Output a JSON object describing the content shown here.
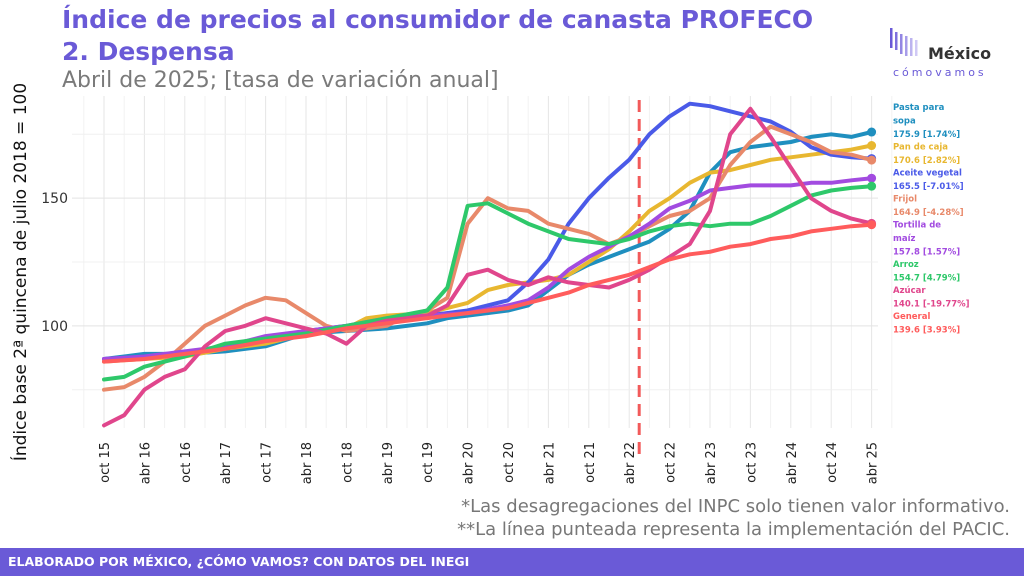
{
  "header": {
    "title_line1": "Índice de precios al consumidor de canasta PROFECO",
    "title_line2": "2. Despensa",
    "subtitle": "Abril de 2025; [tasa de variación anual]"
  },
  "logo": {
    "line1": "México",
    "line2": "cómovamos"
  },
  "notes": {
    "line1": "*Las desagregaciones del INPC solo tienen valor informativo.",
    "line2": "**La línea punteada representa la implementación del PACIC."
  },
  "footer": {
    "text": "ELABORADO POR MÉXICO, ¿CÓMO VAMOS? CON DATOS DEL INEGI"
  },
  "chart_data": {
    "type": "line",
    "ylabel": "Índice base 2ª quincena de julio 2018 = 100",
    "ylim": [
      60,
      190
    ],
    "yticks": [
      100,
      150
    ],
    "x_ticks": [
      "oct 15",
      "abr 16",
      "oct 16",
      "abr 17",
      "oct 17",
      "abr 18",
      "oct 18",
      "abr 19",
      "oct 19",
      "abr 20",
      "oct 20",
      "abr 21",
      "oct 21",
      "abr 22",
      "oct 22",
      "abr 23",
      "oct 23",
      "abr 24",
      "oct 24",
      "abr 25"
    ],
    "vline_at": "abr 22",
    "grid": true,
    "series": [
      {
        "name": "Pasta para sopa",
        "label": "175.9 [1.74%]",
        "color": "#1f8fbf",
        "x": [
          0,
          0.5,
          1,
          2,
          3,
          4,
          5,
          6,
          7,
          8,
          8.5,
          9,
          10,
          10.5,
          11,
          11.5,
          12,
          12.5,
          13,
          13.5,
          14,
          14.5,
          15,
          15.5,
          16,
          16.5,
          17,
          17.5,
          18,
          18.5,
          19
        ],
        "y": [
          87,
          88,
          89,
          89,
          90,
          92,
          97,
          98,
          99,
          101,
          103,
          104,
          106,
          108,
          114,
          120,
          124,
          127,
          130,
          133,
          138,
          145,
          160,
          168,
          170,
          171,
          172,
          174,
          175,
          174,
          175.9
        ]
      },
      {
        "name": "Pan de caja",
        "label": "170.6 [2.82%]",
        "color": "#e8b730",
        "x": [
          0,
          1,
          2,
          3,
          4,
          5,
          6,
          6.5,
          7,
          8,
          9,
          9.5,
          10,
          10.5,
          11,
          11.5,
          12,
          12.5,
          13,
          13.5,
          14,
          14.5,
          15,
          15.5,
          16,
          16.5,
          17,
          17.5,
          18,
          18.5,
          19
        ],
        "y": [
          86,
          87,
          88,
          91,
          93,
          97,
          99,
          103,
          104,
          105,
          109,
          114,
          116,
          117,
          118,
          120,
          125,
          130,
          137,
          145,
          150,
          156,
          160,
          161,
          163,
          165,
          166,
          167,
          168,
          169,
          170.6
        ]
      },
      {
        "name": "Aceite vegetal",
        "label": "165.5 [-7.01%]",
        "color": "#4a5ae8",
        "x": [
          0,
          1,
          2,
          3,
          4,
          5,
          6,
          7,
          8,
          9,
          10,
          10.5,
          11,
          11.5,
          12,
          12.5,
          13,
          13.5,
          14,
          14.5,
          15,
          15.5,
          16,
          16.5,
          17,
          17.5,
          18,
          18.5,
          19
        ],
        "y": [
          87,
          88,
          89,
          92,
          95,
          98,
          100,
          102,
          104,
          106,
          110,
          117,
          126,
          140,
          150,
          158,
          165,
          175,
          182,
          187,
          186,
          184,
          182,
          180,
          176,
          170,
          167,
          166,
          165.5
        ]
      },
      {
        "name": "Frijol",
        "label": "164.9 [-4.28%]",
        "color": "#e8896a",
        "x": [
          0,
          0.5,
          1,
          1.5,
          2,
          2.5,
          3,
          3.5,
          4,
          4.5,
          5,
          5.5,
          6,
          6.5,
          7,
          7.5,
          8,
          8.5,
          9,
          9.5,
          10,
          10.5,
          11,
          11.5,
          12,
          12.5,
          13,
          13.5,
          14,
          14.5,
          15,
          15.5,
          16,
          16.5,
          17,
          17.5,
          18,
          18.5,
          19
        ],
        "y": [
          75,
          76,
          80,
          86,
          93,
          100,
          104,
          108,
          111,
          110,
          105,
          100,
          98,
          99,
          100,
          104,
          106,
          111,
          140,
          150,
          146,
          145,
          140,
          138,
          136,
          132,
          135,
          139,
          143,
          145,
          150,
          163,
          172,
          178,
          175,
          172,
          168,
          167,
          164.9
        ]
      },
      {
        "name": "Tortilla de maíz",
        "label": "157.8 [1.57%]",
        "color": "#a24be0",
        "x": [
          0,
          1,
          2,
          3,
          4,
          5,
          6,
          7,
          8,
          9,
          10,
          10.5,
          11,
          11.5,
          12,
          12.5,
          13,
          13.5,
          14,
          14.5,
          15,
          15.5,
          16,
          16.5,
          17,
          17.5,
          18,
          18.5,
          19
        ],
        "y": [
          87,
          88,
          90,
          92,
          96,
          98,
          100,
          103,
          104,
          105,
          108,
          110,
          115,
          122,
          127,
          131,
          135,
          140,
          146,
          149,
          153,
          154,
          155,
          155,
          155,
          156,
          156,
          157,
          157.8
        ]
      },
      {
        "name": "Arroz",
        "label": "154.7 [4.79%]",
        "color": "#2ec86a",
        "x": [
          0,
          0.5,
          1,
          2,
          3,
          4,
          5,
          6,
          7,
          8,
          8.5,
          9,
          9.5,
          10,
          10.5,
          11,
          11.5,
          12,
          12.5,
          13,
          13.5,
          14,
          14.5,
          15,
          15.5,
          16,
          16.5,
          17,
          17.5,
          18,
          18.5,
          19
        ],
        "y": [
          79,
          80,
          84,
          88,
          93,
          95,
          97,
          100,
          103,
          106,
          115,
          147,
          148,
          144,
          140,
          137,
          134,
          133,
          132,
          134,
          137,
          139,
          140,
          139,
          140,
          140,
          143,
          147,
          151,
          153,
          154,
          154.7
        ]
      },
      {
        "name": "Azúcar",
        "label": "140.1 [-19.77%]",
        "color": "#e0468c",
        "x": [
          0,
          0.5,
          1,
          1.5,
          2,
          2.5,
          3,
          3.5,
          4,
          4.5,
          5,
          5.5,
          6,
          6.5,
          7,
          7.5,
          8,
          8.5,
          9,
          9.5,
          10,
          10.5,
          11,
          11.5,
          12,
          12.5,
          13,
          13.5,
          14,
          14.5,
          15,
          15.5,
          16,
          16.5,
          17,
          17.5,
          18,
          18.5,
          19
        ],
        "y": [
          61,
          65,
          75,
          80,
          83,
          92,
          98,
          100,
          103,
          101,
          99,
          97,
          93,
          100,
          102,
          103,
          104,
          108,
          120,
          122,
          118,
          116,
          119,
          117,
          116,
          115,
          118,
          122,
          127,
          132,
          145,
          175,
          185,
          174,
          162,
          150,
          145,
          142,
          140.1
        ]
      },
      {
        "name": "General",
        "label": "139.6 [3.93%]",
        "color": "#ff5c5c",
        "x": [
          0,
          1,
          2,
          3,
          4,
          5,
          6,
          7,
          8,
          9,
          10,
          10.5,
          11,
          11.5,
          12,
          12.5,
          13,
          13.5,
          14,
          14.5,
          15,
          15.5,
          16,
          16.5,
          17,
          17.5,
          18,
          18.5,
          19
        ],
        "y": [
          86,
          87,
          89,
          91,
          94,
          96,
          99,
          101,
          103,
          105,
          107,
          109,
          111,
          113,
          116,
          118,
          120,
          123,
          126,
          128,
          129,
          131,
          132,
          134,
          135,
          137,
          138,
          139,
          139.6
        ]
      }
    ]
  }
}
